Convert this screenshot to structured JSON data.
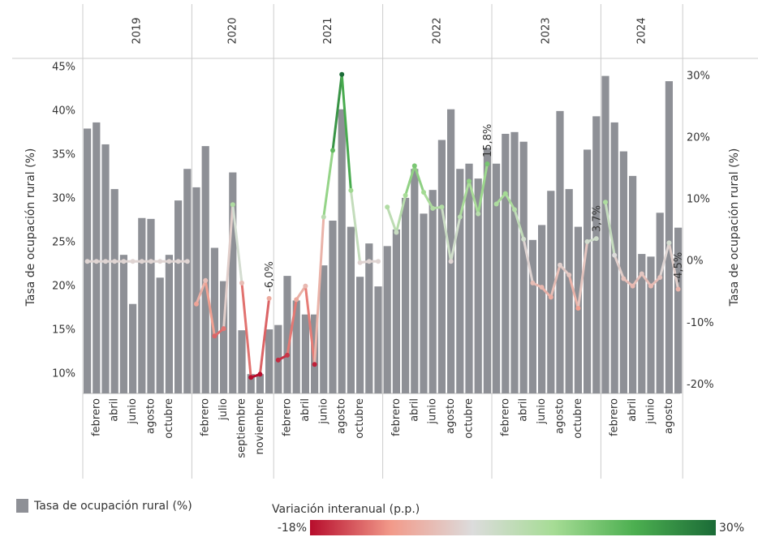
{
  "chart_data": {
    "type": "bar-line",
    "y_label": "Tasa de ocupación rural (%)",
    "y2_label": "Tasa de ocupación rural (%)",
    "ylim": [
      7.8,
      46
    ],
    "yticks": [
      {
        "value": 10,
        "label": "10%"
      },
      {
        "value": 15,
        "label": "15%"
      },
      {
        "value": 20,
        "label": "20%"
      },
      {
        "value": 25,
        "label": "25%"
      },
      {
        "value": 30,
        "label": "30%"
      },
      {
        "value": 35,
        "label": "35%"
      },
      {
        "value": 40,
        "label": "40%"
      },
      {
        "value": 45,
        "label": "45%"
      }
    ],
    "y2lim": [
      -21.4,
      32.9
    ],
    "y2ticks": [
      {
        "value": -20,
        "label": "-20%"
      },
      {
        "value": -10,
        "label": "-10%"
      },
      {
        "value": 0,
        "label": "0%"
      },
      {
        "value": 10,
        "label": "10%"
      },
      {
        "value": 20,
        "label": "20%"
      },
      {
        "value": 30,
        "label": "30%"
      }
    ],
    "groups": [
      {
        "label": "2019",
        "categories": [
          null,
          "febrero",
          null,
          "abril",
          null,
          "junio",
          null,
          "agosto",
          null,
          "octubre",
          null,
          null
        ]
      },
      {
        "label": "2020",
        "categories": [
          null,
          "febrero",
          null,
          "julio",
          null,
          "septiembre",
          null,
          "noviembre",
          null
        ]
      },
      {
        "label": "2021",
        "categories": [
          null,
          "febrero",
          null,
          "abril",
          null,
          "junio",
          null,
          "agosto",
          null,
          "octubre",
          null,
          null
        ]
      },
      {
        "label": "2022",
        "categories": [
          null,
          "febrero",
          null,
          "abril",
          null,
          "junio",
          null,
          "agosto",
          null,
          "octubre",
          null,
          null
        ]
      },
      {
        "label": "2023",
        "categories": [
          null,
          "febrero",
          null,
          "abril",
          null,
          "junio",
          null,
          "agosto",
          null,
          "octubre",
          null,
          null
        ]
      },
      {
        "label": "2024",
        "categories": [
          null,
          "febrero",
          null,
          "abril",
          null,
          "junio",
          null,
          "agosto",
          null
        ]
      }
    ],
    "series": [
      {
        "name": "Tasa de ocupación rural (%)",
        "color": "#8e9096",
        "values": [
          38.0,
          38.7,
          36.2,
          31.1,
          23.6,
          18.0,
          27.8,
          27.7,
          21.0,
          23.6,
          29.8,
          33.4,
          31.3,
          36.0,
          24.4,
          20.6,
          33.0,
          15.0,
          10.0,
          10.0,
          15.1,
          15.6,
          21.2,
          18.4,
          16.8,
          16.8,
          22.4,
          27.5,
          40.2,
          26.8,
          21.1,
          24.9,
          20.0,
          24.6,
          26.5,
          30.1,
          33.4,
          28.3,
          31.0,
          36.7,
          40.2,
          33.4,
          34.0,
          32.3,
          35.8,
          34.0,
          37.4,
          37.6,
          36.5,
          25.3,
          27.0,
          30.9,
          40.0,
          31.1,
          26.8,
          35.6,
          39.4,
          44.0,
          38.7,
          35.4,
          32.6,
          23.7,
          23.4,
          28.4,
          43.4,
          26.7
        ]
      },
      {
        "name": "Variación interanual (p.p.)",
        "axis": "y2",
        "values": [
          0,
          0,
          0,
          0,
          0,
          0,
          0,
          0,
          0,
          0,
          0,
          0,
          -6.9,
          -3.1,
          -12.1,
          -10.9,
          9.2,
          -3.5,
          -18.8,
          -18.3,
          -6.0,
          -16.0,
          -15.2,
          -6.2,
          -4.0,
          -16.7,
          7.2,
          18.0,
          30.3,
          11.5,
          -0.2,
          0,
          0,
          8.8,
          4.7,
          10.7,
          15.5,
          11.2,
          8.6,
          8.8,
          0,
          7.2,
          13.0,
          7.7,
          15.8,
          9.3,
          11.0,
          8.4,
          3.6,
          -3.5,
          -4.2,
          -5.8,
          -0.6,
          -2.2,
          -7.6,
          3.2,
          3.7,
          9.6,
          1.0,
          -2.8,
          -4.0,
          -2.0,
          -4.0,
          -2.6,
          3.0,
          -4.5
        ],
        "value_labels": [
          null,
          null,
          null,
          null,
          null,
          null,
          null,
          null,
          null,
          null,
          null,
          null,
          null,
          null,
          null,
          null,
          null,
          null,
          null,
          null,
          "-6,0%",
          null,
          null,
          null,
          null,
          null,
          null,
          null,
          null,
          null,
          null,
          null,
          null,
          null,
          null,
          null,
          null,
          null,
          null,
          null,
          null,
          null,
          null,
          null,
          "15,8%",
          null,
          null,
          null,
          null,
          null,
          null,
          null,
          null,
          null,
          null,
          null,
          "3,7%",
          null,
          null,
          null,
          null,
          null,
          null,
          null,
          null,
          "-4,5%"
        ]
      }
    ],
    "colorscale": {
      "min": {
        "value": -18,
        "label": "-18%"
      },
      "max": {
        "value": 30,
        "label": "30%"
      },
      "colors": [
        "#b70d2c",
        "#f29a8a",
        "#dcdcdc",
        "#a6dc95",
        "#4caf50",
        "#1b6b37"
      ]
    }
  }
}
